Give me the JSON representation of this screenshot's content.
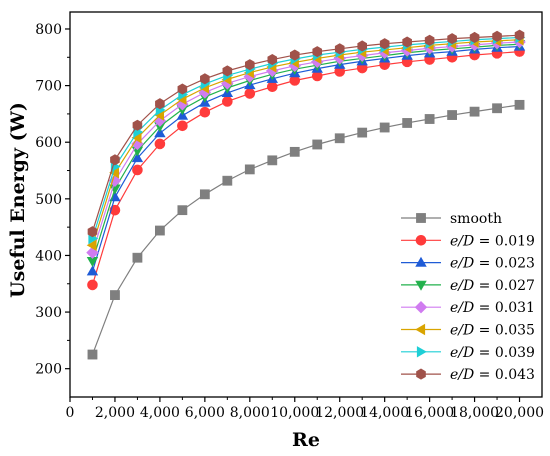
{
  "chart_data": {
    "type": "line",
    "xlabel": "Re",
    "ylabel": "Useful Energy (W)",
    "xlim": [
      0,
      21000
    ],
    "ylim": [
      150,
      830
    ],
    "x_ticks": [
      0,
      2000,
      4000,
      6000,
      8000,
      10000,
      12000,
      14000,
      16000,
      18000,
      20000
    ],
    "x_tick_labels": [
      "0",
      "2,000",
      "4,000",
      "6,000",
      "8,000",
      "10,000",
      "12,000",
      "14,000",
      "16,000",
      "18,000",
      "20,000"
    ],
    "y_ticks": [
      200,
      300,
      400,
      500,
      600,
      700,
      800
    ],
    "y_tick_labels": [
      "200",
      "300",
      "400",
      "500",
      "600",
      "700",
      "800"
    ],
    "legend_position": "bottom-right",
    "x": [
      1000,
      2000,
      3000,
      4000,
      5000,
      6000,
      7000,
      8000,
      9000,
      10000,
      11000,
      12000,
      13000,
      14000,
      15000,
      16000,
      17000,
      18000,
      19000,
      20000
    ],
    "series": [
      {
        "name": "smooth",
        "prefix": "",
        "value_label": "",
        "marker": "square",
        "color": "#7f7f7f",
        "values": [
          225,
          330,
          396,
          444,
          480,
          508,
          532,
          552,
          568,
          583,
          596,
          607,
          617,
          626,
          634,
          641,
          648,
          654,
          660,
          666
        ]
      },
      {
        "name": "e/D = 0.019",
        "prefix": "e/D",
        "value_label": " = 0.019",
        "marker": "circle",
        "color": "#ff3b3b",
        "values": [
          348,
          480,
          551,
          597,
          629,
          653,
          672,
          686,
          698,
          709,
          717,
          725,
          731,
          737,
          742,
          746,
          750,
          754,
          757,
          760
        ]
      },
      {
        "name": "e/D = 0.023",
        "prefix": "e/D",
        "value_label": " = 0.023",
        "marker": "triangle-up",
        "color": "#1f5bd6",
        "values": [
          372,
          503,
          572,
          616,
          647,
          670,
          687,
          701,
          712,
          722,
          730,
          737,
          743,
          748,
          753,
          757,
          760,
          764,
          767,
          769
        ]
      },
      {
        "name": "e/D = 0.027",
        "prefix": "e/D",
        "value_label": " = 0.027",
        "marker": "triangle-down",
        "color": "#22b14c",
        "values": [
          390,
          518,
          585,
          628,
          658,
          680,
          696,
          709,
          720,
          729,
          736,
          743,
          748,
          753,
          758,
          762,
          765,
          768,
          771,
          773
        ]
      },
      {
        "name": "e/D = 0.031",
        "prefix": "e/D",
        "value_label": " = 0.031",
        "marker": "diamond",
        "color": "#d07cf0",
        "values": [
          405,
          532,
          597,
          638,
          667,
          688,
          704,
          716,
          726,
          735,
          742,
          748,
          753,
          758,
          762,
          766,
          769,
          772,
          775,
          777
        ]
      },
      {
        "name": "e/D = 0.035",
        "prefix": "e/D",
        "value_label": " = 0.035",
        "marker": "triangle-left",
        "color": "#d9a400",
        "values": [
          418,
          546,
          608,
          648,
          676,
          696,
          711,
          723,
          733,
          741,
          748,
          754,
          759,
          763,
          767,
          771,
          774,
          777,
          779,
          781
        ]
      },
      {
        "name": "e/D = 0.039",
        "prefix": "e/D",
        "value_label": " = 0.039",
        "marker": "triangle-right",
        "color": "#1ecfd6",
        "values": [
          430,
          557,
          618,
          657,
          684,
          703,
          718,
          729,
          739,
          747,
          754,
          759,
          764,
          768,
          772,
          775,
          778,
          781,
          783,
          785
        ]
      },
      {
        "name": "e/D = 0.043",
        "prefix": "e/D",
        "value_label": " = 0.043",
        "marker": "hexagon",
        "color": "#a0524a",
        "values": [
          442,
          569,
          630,
          668,
          694,
          712,
          726,
          737,
          746,
          754,
          760,
          765,
          770,
          774,
          777,
          780,
          783,
          785,
          787,
          789
        ]
      }
    ]
  }
}
